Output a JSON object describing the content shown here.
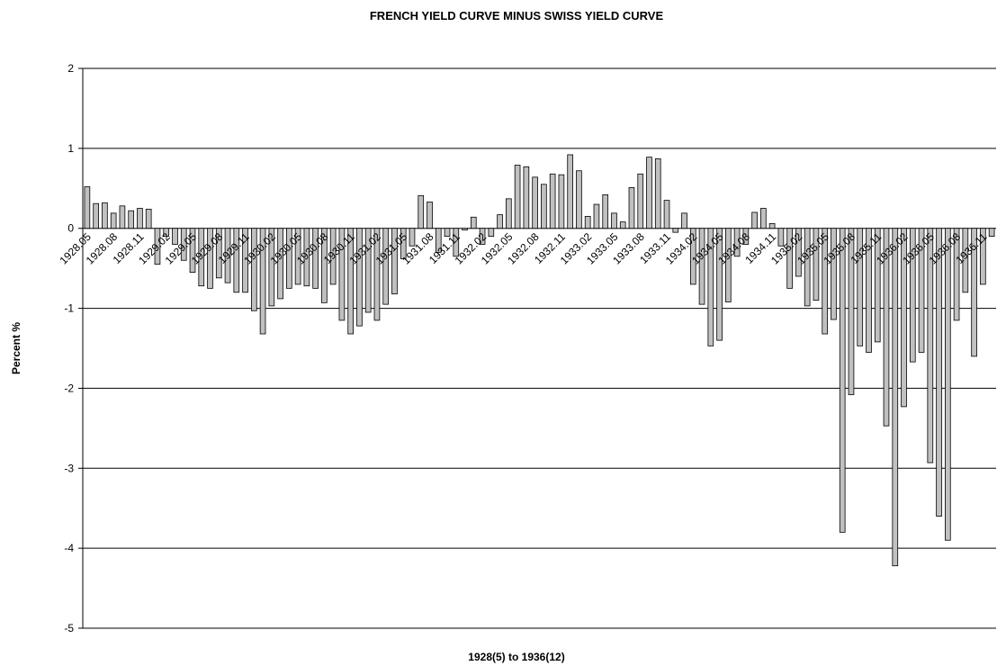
{
  "chart_data": {
    "type": "bar",
    "title": "FRENCH YIELD CURVE MINUS SWISS YIELD CURVE",
    "x_label": "1928(5) to 1936(12)",
    "y_label": "Percent %",
    "categories": [
      "1928.05",
      null,
      null,
      "1928.08",
      null,
      null,
      "1928.11",
      null,
      null,
      "1929.02",
      null,
      null,
      "1929.05",
      null,
      null,
      "1929.08",
      null,
      null,
      "1929.11",
      null,
      null,
      "1930.02",
      null,
      null,
      "1930.05",
      null,
      null,
      "1930.08",
      null,
      null,
      "1930.11",
      null,
      null,
      "1931.02",
      null,
      null,
      "1931.05",
      null,
      null,
      "1931.08",
      null,
      null,
      "1931.11",
      null,
      null,
      "1932.02",
      null,
      null,
      "1932.05",
      null,
      null,
      "1932.08",
      null,
      null,
      "1932.11",
      null,
      null,
      "1933.02",
      null,
      null,
      "1933.05",
      null,
      null,
      "1933.08",
      null,
      null,
      "1933.11",
      null,
      null,
      "1934.02",
      null,
      null,
      "1934.05",
      null,
      null,
      "1934.08",
      null,
      null,
      "1934.11",
      null,
      null,
      "1935.02",
      null,
      null,
      "1935.05",
      null,
      null,
      "1935.08",
      null,
      null,
      "1935.11",
      null,
      null,
      "1936.02",
      null,
      null,
      "1936.05",
      null,
      null,
      "1936.08",
      null,
      null,
      "1936.11",
      null
    ],
    "values": [
      0.52,
      0.31,
      0.32,
      0.19,
      0.28,
      0.22,
      0.25,
      0.24,
      -0.45,
      -0.1,
      -0.2,
      -0.4,
      -0.55,
      -0.72,
      -0.75,
      -0.62,
      -0.68,
      -0.8,
      -0.8,
      -1.03,
      -1.32,
      -0.97,
      -0.88,
      -0.75,
      -0.7,
      -0.72,
      -0.75,
      -0.93,
      -0.7,
      -1.15,
      -1.32,
      -1.22,
      -1.05,
      -1.15,
      -0.95,
      -0.82,
      -0.38,
      -0.22,
      0.41,
      0.33,
      -0.3,
      -0.1,
      -0.35,
      -0.02,
      0.14,
      -0.2,
      -0.1,
      0.17,
      0.37,
      0.79,
      0.77,
      0.64,
      0.55,
      0.68,
      0.67,
      0.92,
      0.72,
      0.15,
      0.3,
      0.42,
      0.19,
      0.08,
      0.51,
      0.68,
      0.89,
      0.87,
      0.35,
      -0.05,
      0.19,
      -0.7,
      -0.95,
      -1.47,
      -1.4,
      -0.92,
      -0.35,
      -0.2,
      0.2,
      0.25,
      0.06,
      -0.22,
      -0.75,
      -0.6,
      -0.97,
      -0.9,
      -1.32,
      -1.14,
      -3.8,
      -2.08,
      -1.47,
      -1.55,
      -1.42,
      -2.47,
      -4.22,
      -2.23,
      -1.67,
      -1.55,
      -2.93,
      -3.6,
      -3.9,
      -1.15,
      -0.8,
      -1.6,
      -0.7,
      -0.1
    ],
    "color": "#c0c0c0",
    "ylim": [
      -5,
      2
    ],
    "yticks": [
      -5,
      -4,
      -3,
      -2,
      -1,
      0,
      1,
      2
    ],
    "grid": true
  }
}
